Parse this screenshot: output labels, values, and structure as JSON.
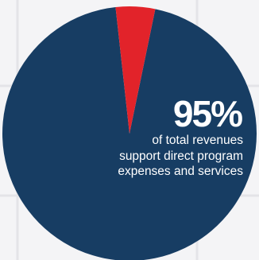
{
  "chart_data": {
    "type": "pie",
    "slices": [
      {
        "label": "Direct program expenses and services",
        "value": 95,
        "color": "#173d63"
      },
      {
        "label": "",
        "value": 5,
        "color": "#e2232a"
      }
    ]
  },
  "callout": {
    "percent": "95%",
    "line1": "of total revenues",
    "line2": "support direct program",
    "line3": "expenses and services"
  },
  "colors": {
    "background": "#f4f4f6",
    "grid": "#e4e4e8",
    "primary": "#173d63",
    "accent": "#e2232a"
  }
}
